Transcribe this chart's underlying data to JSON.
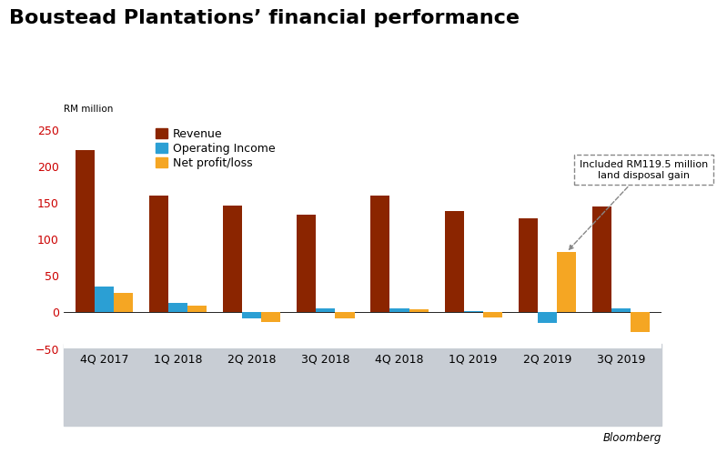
{
  "title": "Boustead Plantations’ financial performance",
  "ylabel": "RM million",
  "categories": [
    "4Q 2017",
    "1Q 2018",
    "2Q 2018",
    "3Q 2018",
    "4Q 2018",
    "1Q 2019",
    "2Q 2019",
    "3Q 2019"
  ],
  "revenue": [
    222,
    160,
    146,
    133,
    160,
    138,
    128,
    145
  ],
  "operating_income": [
    35,
    13,
    -8,
    5,
    5,
    1,
    -15,
    5
  ],
  "net_profit": [
    26,
    9,
    -13,
    -9,
    4,
    -7,
    82,
    -27
  ],
  "revenue_color": "#8B2500",
  "operating_income_color": "#2B9FD4",
  "net_profit_color": "#F5A623",
  "ylim": [
    -50,
    260
  ],
  "yticks": [
    -50,
    0,
    50,
    100,
    150,
    200,
    250
  ],
  "annotation_text": "Included RM119.5 million\nland disposal gain",
  "annotation_target_category": "2Q 2019",
  "bloomberg_label": "Bloomberg",
  "background_color": "#ffffff",
  "xaxis_bg_color": "#c8cdd4",
  "bar_width": 0.26,
  "title_fontsize": 16,
  "tick_fontsize": 9,
  "legend_fontsize": 9
}
